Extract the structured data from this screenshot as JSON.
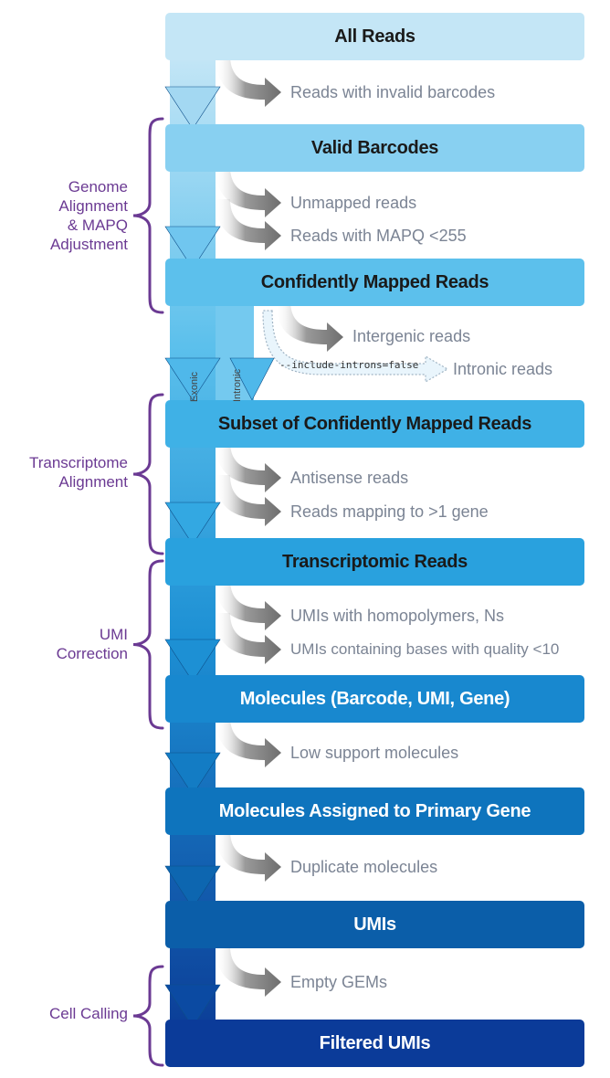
{
  "stages": [
    {
      "label": "All Reads",
      "fill": "#c4e6f6",
      "text": "#1a1a1a"
    },
    {
      "label": "Valid Barcodes",
      "fill": "#88d0f1",
      "text": "#1a1a1a"
    },
    {
      "label": "Confidently Mapped Reads",
      "fill": "#5cc0ec",
      "text": "#1a1a1a"
    },
    {
      "label": "Subset of Confidently Mapped Reads",
      "fill": "#3fb1e6",
      "text": "#1a1a1a"
    },
    {
      "label": "Transcriptomic Reads",
      "fill": "#29a1de",
      "text": "#1a1a1a"
    },
    {
      "label": "Molecules (Barcode, UMI, Gene)",
      "fill": "#1888cf",
      "text": "#ffffff"
    },
    {
      "label": "Molecules Assigned to Primary Gene",
      "fill": "#0e74bd",
      "text": "#ffffff"
    },
    {
      "label": "UMIs",
      "fill": "#0b5ea9",
      "text": "#ffffff"
    },
    {
      "label": "Filtered UMIs",
      "fill": "#0b3b99",
      "text": "#ffffff"
    }
  ],
  "outputs": [
    "Reads with invalid barcodes",
    "Unmapped reads",
    "Reads with MAPQ <255",
    "Intergenic reads",
    "Intronic reads",
    "Antisense reads",
    "Reads mapping to >1 gene",
    "UMIs with homopolymers, Ns",
    "UMIs containing bases with quality <10",
    "Low support molecules",
    "Duplicate molecules",
    "Empty GEMs"
  ],
  "groups": [
    {
      "label": "Genome\nAlignment\n& MAPQ\nAdjustment"
    },
    {
      "label": "Transcriptome\nAlignment"
    },
    {
      "label": "UMI\nCorrection"
    },
    {
      "label": "Cell Calling"
    }
  ],
  "flag_text": "--include-introns=false",
  "branch_labels": {
    "exonic": "Exonic",
    "intronic": "Intronic"
  },
  "colors": {
    "bracket": "#6b3a93",
    "output_text": "#7b8494",
    "arrow_gray": "#7f7f7f",
    "dashed_outline": "#a0b4c4"
  }
}
